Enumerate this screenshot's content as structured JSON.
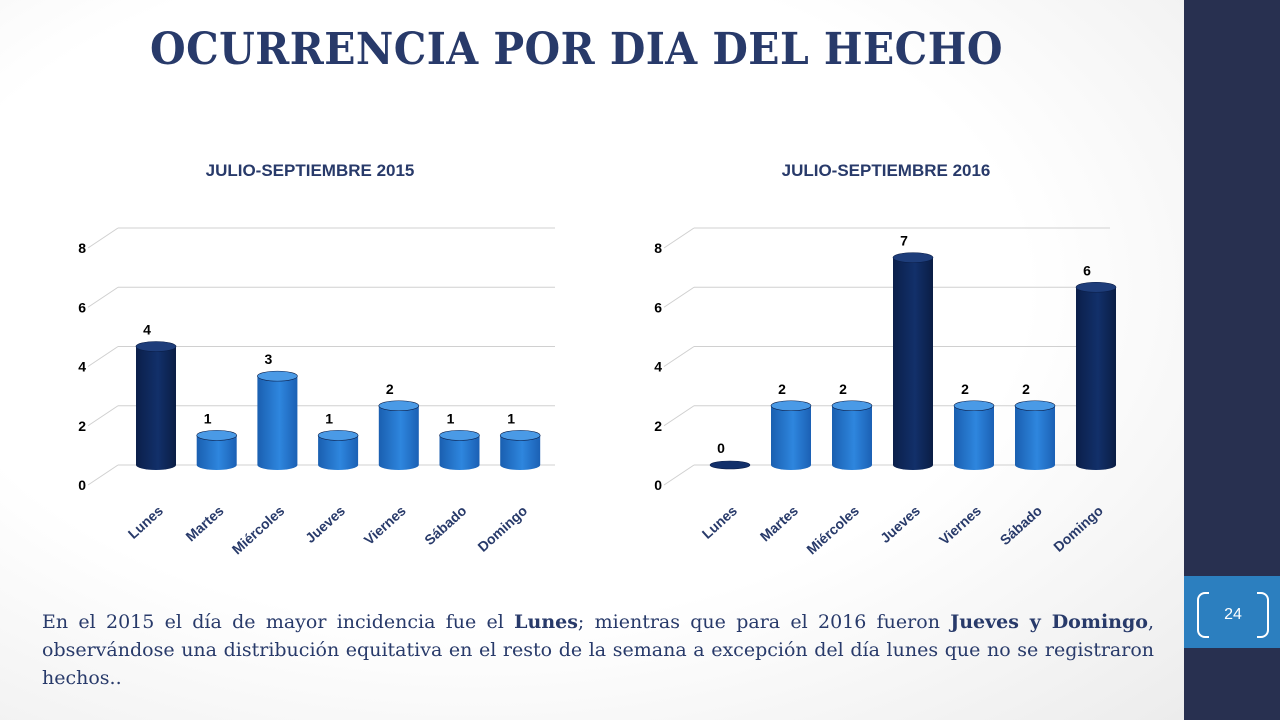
{
  "slide": {
    "title": "OCURRENCIA POR DIA DEL HECHO",
    "page_number": "24",
    "colors": {
      "sidebar": "#283050",
      "page_tab": "#2c7fbf",
      "title": "#283a6a",
      "bar_light": "#2e86de",
      "bar_dark": "#12306a"
    }
  },
  "chart_data": [
    {
      "type": "bar",
      "title": "JULIO-SEPTIEMBRE 2015",
      "categories": [
        "Lunes",
        "Martes",
        "Miércoles",
        "Jueves",
        "Viernes",
        "Sábado",
        "Domingo"
      ],
      "values": [
        4,
        1,
        3,
        1,
        2,
        1,
        1
      ],
      "highlight": [
        true,
        false,
        false,
        false,
        false,
        false,
        false
      ],
      "yticks": [
        "0",
        "2",
        "4",
        "6",
        "8"
      ],
      "ylim": [
        0,
        8
      ],
      "grid": true,
      "style": "3d-cylinder"
    },
    {
      "type": "bar",
      "title": "JULIO-SEPTIEMBRE 2016",
      "categories": [
        "Lunes",
        "Martes",
        "Miércoles",
        "Jueves",
        "Viernes",
        "Sábado",
        "Domingo"
      ],
      "values": [
        0,
        2,
        2,
        7,
        2,
        2,
        6
      ],
      "highlight": [
        true,
        false,
        false,
        true,
        false,
        false,
        true
      ],
      "yticks": [
        "0",
        "2",
        "4",
        "6",
        "8"
      ],
      "ylim": [
        0,
        8
      ],
      "grid": true,
      "style": "3d-cylinder"
    }
  ],
  "summary": {
    "p1": "En el 2015 el día de mayor incidencia fue el ",
    "b1": "Lunes",
    "p2": "; mientras que para el 2016 fueron ",
    "b2": "Jueves y Domingo",
    "p3": ", observándose una distribución equitativa en el resto de la semana a excepción del día lunes que no se registraron hechos.."
  }
}
